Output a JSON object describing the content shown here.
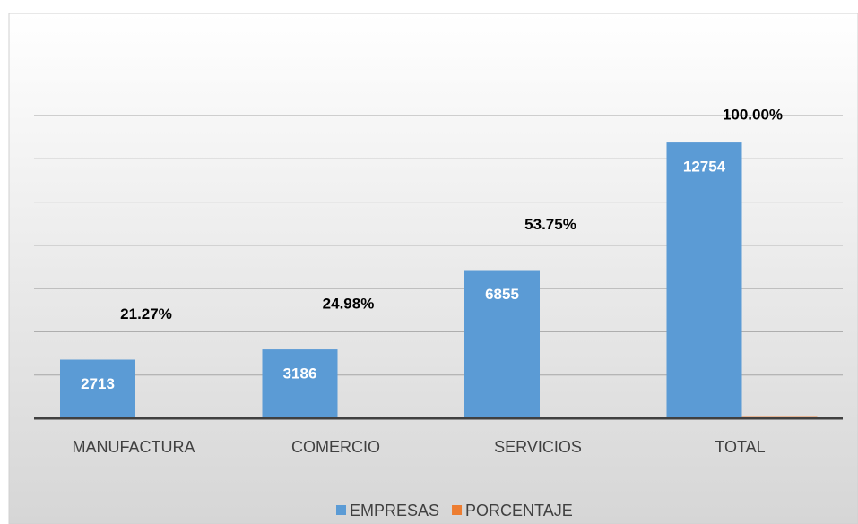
{
  "chart_data": {
    "type": "bar",
    "categories": [
      "MANUFACTURA",
      "COMERCIO",
      "SERVICIOS",
      "TOTAL"
    ],
    "series": [
      {
        "name": "EMPRESAS",
        "color": "#5b9bd5",
        "values": [
          2713,
          3186,
          6855,
          12754
        ]
      },
      {
        "name": "PORCENTAJE",
        "color": "#ed7d31",
        "values": [
          21.27,
          24.98,
          53.75,
          100
        ],
        "value_labels": [
          "21.27%",
          "24.98%",
          "53.75%",
          "100.00%"
        ]
      }
    ],
    "ylim": [
      0,
      14000
    ],
    "yticks": [
      0,
      2000,
      4000,
      6000,
      8000,
      10000,
      12000,
      14000
    ],
    "grid": true
  }
}
